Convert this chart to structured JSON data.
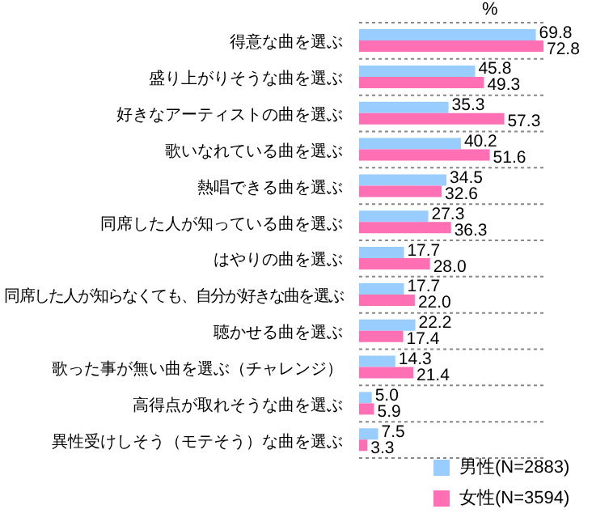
{
  "chart_data": {
    "type": "bar",
    "orientation": "horizontal",
    "xlabel": "%",
    "grid": true,
    "legend": "bottom right",
    "categories": [
      "得意な曲を選ぶ",
      "盛り上がりそうな曲を選ぶ",
      "好きなアーティストの曲を選ぶ",
      "歌いなれている曲を選ぶ",
      "熱唱できる曲を選ぶ",
      "同席した人が知っている曲を選ぶ",
      "はやりの曲を選ぶ",
      "同席した人が知らなくても、自分が好きな曲を選ぶ",
      "聴かせる曲を選ぶ",
      "歌った事が無い曲を選ぶ（チャレンジ）",
      "高得点が取れそうな曲を選ぶ",
      "異性受けしそう（モテそう）な曲を選ぶ"
    ],
    "series": [
      {
        "name": "男性(N=2883)",
        "color": "#99ccff",
        "values": [
          69.8,
          45.8,
          35.3,
          40.2,
          34.5,
          27.3,
          17.7,
          17.7,
          22.2,
          14.3,
          5.0,
          7.5
        ],
        "value_labels": [
          "69.8",
          "45.8",
          "35.3",
          "40.2",
          "34.5",
          "27.3",
          "17.7",
          "17.7",
          "22.2",
          "14.3",
          "5.0",
          "7.5"
        ]
      },
      {
        "name": "女性(N=3594)",
        "color": "#ff6fb4",
        "values": [
          72.8,
          49.3,
          57.3,
          51.6,
          32.6,
          36.3,
          28.0,
          22.0,
          17.4,
          21.4,
          5.9,
          3.3
        ],
        "value_labels": [
          "72.8",
          "49.3",
          "57.3",
          "51.6",
          "32.6",
          "36.3",
          "28.0",
          "22.0",
          "17.4",
          "21.4",
          "5.9",
          "3.3"
        ]
      }
    ]
  }
}
